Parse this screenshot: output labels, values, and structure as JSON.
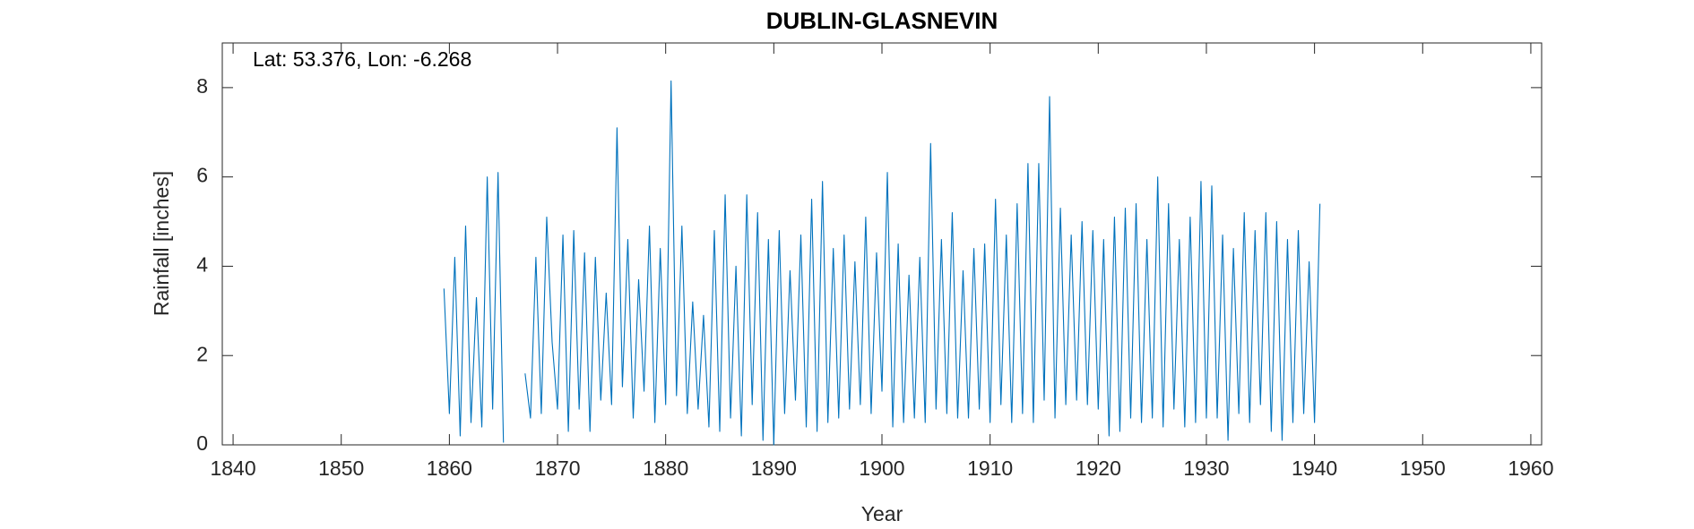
{
  "chart_data": {
    "type": "line",
    "title": "DUBLIN-GLASNEVIN",
    "annotation": "Lat: 53.376, Lon: -6.268",
    "xlabel": "Year",
    "ylabel": "Rainfall [inches]",
    "xlim": [
      1839,
      1961
    ],
    "xticks": [
      1840,
      1850,
      1860,
      1870,
      1880,
      1890,
      1900,
      1910,
      1920,
      1930,
      1940,
      1950,
      1960
    ],
    "ylim": [
      0,
      9
    ],
    "yticks": [
      0,
      2,
      4,
      6,
      8
    ],
    "x": [
      1859.5,
      1860,
      1860.5,
      1861,
      1861.5,
      1862,
      1862.5,
      1863,
      1863.5,
      1864,
      1864.5,
      1865,
      1866,
      1867,
      1867.5,
      1868,
      1868.5,
      1869,
      1869.5,
      1870,
      1870.5,
      1871,
      1871.5,
      1872,
      1872.5,
      1873,
      1873.5,
      1874,
      1874.5,
      1875,
      1875.5,
      1876,
      1876.5,
      1877,
      1877.5,
      1878,
      1878.5,
      1879,
      1879.5,
      1880,
      1880.5,
      1881,
      1881.5,
      1882,
      1882.5,
      1883,
      1883.5,
      1884,
      1884.5,
      1885,
      1885.5,
      1886,
      1886.5,
      1887,
      1887.5,
      1888,
      1888.5,
      1889,
      1889.5,
      1890,
      1890.5,
      1891,
      1891.5,
      1892,
      1892.5,
      1893,
      1893.5,
      1894,
      1894.5,
      1895,
      1895.5,
      1896,
      1896.5,
      1897,
      1897.5,
      1898,
      1898.5,
      1899,
      1899.5,
      1900,
      1900.5,
      1901,
      1901.5,
      1902,
      1902.5,
      1903,
      1903.5,
      1904,
      1904.5,
      1905,
      1905.5,
      1906,
      1906.5,
      1907,
      1907.5,
      1908,
      1908.5,
      1909,
      1909.5,
      1910,
      1910.5,
      1911,
      1911.5,
      1912,
      1912.5,
      1913,
      1913.5,
      1914,
      1914.5,
      1915,
      1915.5,
      1916,
      1916.5,
      1917,
      1917.5,
      1918,
      1918.5,
      1919,
      1919.5,
      1920,
      1920.5,
      1921,
      1921.5,
      1922,
      1922.5,
      1923,
      1923.5,
      1924,
      1924.5,
      1925,
      1925.5,
      1926,
      1926.5,
      1927,
      1927.5,
      1928,
      1928.5,
      1929,
      1929.5,
      1930,
      1930.5,
      1931,
      1931.5,
      1932,
      1932.5,
      1933,
      1933.5,
      1934,
      1934.5,
      1935,
      1935.5,
      1936,
      1936.5,
      1937,
      1937.5,
      1938,
      1938.5,
      1939,
      1939.5,
      1940,
      1940.5
    ],
    "series": [
      {
        "color": "#0072bd",
        "values": [
          3.5,
          0.7,
          4.2,
          0.2,
          4.9,
          0.5,
          3.3,
          0.4,
          6.0,
          0.8,
          6.1,
          0.05,
          null,
          1.6,
          0.6,
          4.2,
          0.7,
          5.1,
          2.3,
          0.8,
          4.7,
          0.3,
          4.8,
          0.8,
          4.3,
          0.3,
          4.2,
          1.0,
          3.4,
          0.9,
          7.1,
          1.3,
          4.6,
          0.6,
          3.7,
          1.2,
          4.9,
          0.5,
          4.4,
          0.9,
          8.15,
          1.1,
          4.9,
          0.7,
          3.2,
          0.8,
          2.9,
          0.4,
          4.8,
          0.3,
          5.6,
          0.6,
          4.0,
          0.2,
          5.6,
          0.9,
          5.2,
          0.1,
          4.6,
          0.0,
          4.8,
          0.7,
          3.9,
          1.0,
          4.7,
          0.4,
          5.5,
          0.3,
          5.9,
          0.5,
          4.4,
          0.6,
          4.7,
          0.8,
          4.1,
          0.9,
          5.1,
          0.7,
          4.3,
          1.2,
          6.1,
          0.4,
          4.5,
          0.5,
          3.8,
          0.6,
          4.2,
          0.5,
          6.75,
          0.8,
          4.6,
          0.7,
          5.2,
          0.6,
          3.9,
          0.6,
          4.4,
          0.8,
          4.5,
          0.5,
          5.5,
          0.9,
          4.7,
          0.5,
          5.4,
          0.7,
          6.3,
          0.5,
          6.3,
          1.0,
          7.8,
          0.6,
          5.3,
          0.9,
          4.7,
          1.0,
          5.0,
          0.9,
          4.8,
          0.8,
          4.6,
          0.2,
          5.1,
          0.3,
          5.3,
          0.6,
          5.4,
          0.5,
          4.6,
          0.6,
          6.0,
          0.4,
          5.4,
          0.8,
          4.6,
          0.4,
          5.1,
          0.5,
          5.9,
          0.6,
          5.8,
          0.6,
          4.7,
          0.1,
          4.4,
          0.7,
          5.2,
          0.5,
          4.8,
          0.9,
          5.2,
          0.3,
          5.0,
          0.1,
          4.6,
          0.5,
          4.8,
          0.7,
          4.1,
          0.5,
          5.4
        ]
      }
    ]
  }
}
